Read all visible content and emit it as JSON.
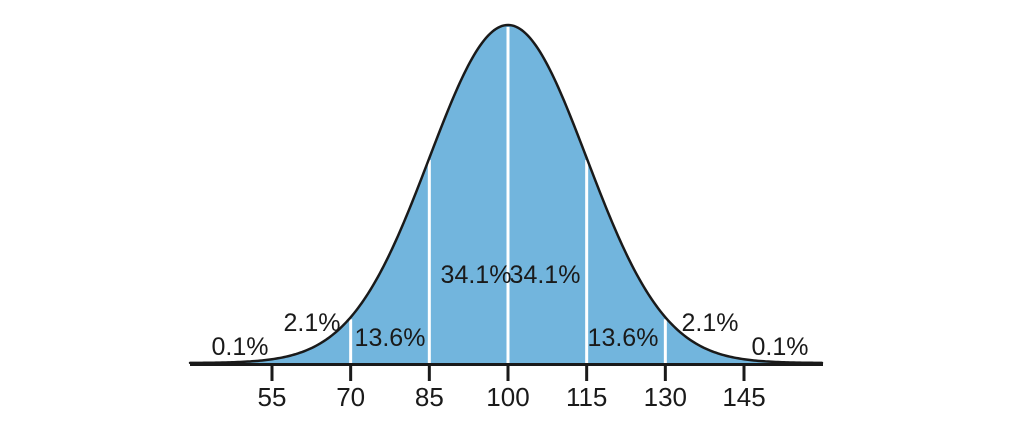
{
  "chart_data": {
    "type": "area",
    "subtype": "normal-distribution-curve",
    "title": "",
    "mean": 100,
    "sd": 15,
    "x_ticks": [
      "55",
      "70",
      "85",
      "100",
      "115",
      "130",
      "145"
    ],
    "x_tick_values": [
      55,
      70,
      85,
      100,
      115,
      130,
      145
    ],
    "xlim": [
      40,
      160
    ],
    "divider_values": [
      70,
      85,
      100,
      115,
      130
    ],
    "segment_labels": [
      "0.1%",
      "2.1%",
      "13.6%",
      "34.1%",
      "34.1%",
      "13.6%",
      "2.1%",
      "0.1%"
    ],
    "segment_values": [
      0.1,
      2.1,
      13.6,
      34.1,
      34.1,
      13.6,
      2.1,
      0.1
    ],
    "segment_ranges": [
      "<55",
      "55-70",
      "70-85",
      "85-100",
      "100-115",
      "115-130",
      "130-145",
      ">145"
    ],
    "legend": "none",
    "grid": "off",
    "colors": {
      "fill": "#72b5dd",
      "curve_stroke": "#1a1a1a",
      "axis": "#1a1a1a",
      "divider": "#ffffff",
      "text": "#1a1a1a",
      "background": "#ffffff"
    }
  }
}
